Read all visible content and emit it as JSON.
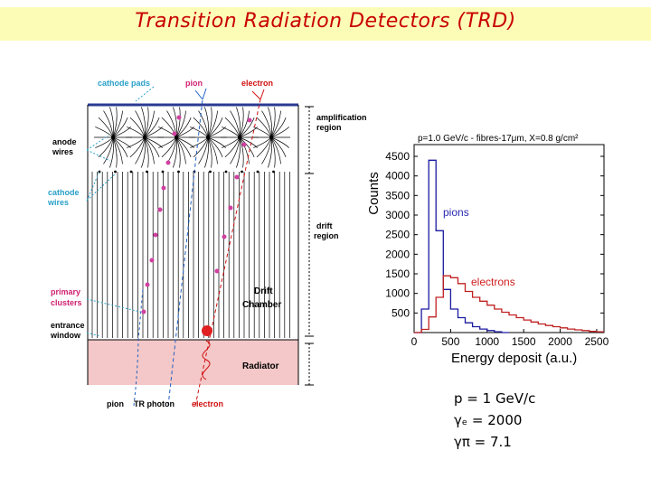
{
  "title": "Transition Radiation Detectors (TRD)",
  "diagram": {
    "labels": {
      "cathode_pads": "cathode pads",
      "pion_top": "pion",
      "electron_top": "electron",
      "amplification": [
        "amplification",
        "region"
      ],
      "anode_wires": [
        "anode",
        "wires"
      ],
      "cathode_wires": [
        "cathode",
        "wires"
      ],
      "drift_region": [
        "drift",
        "region"
      ],
      "drift_chamber": [
        "Drift",
        "Chamber"
      ],
      "primary_clusters": [
        "primary",
        "clusters"
      ],
      "entrance_window": [
        "entrance",
        "window"
      ],
      "radiator": "Radiator",
      "pion_bottom": "pion",
      "tr_photon": "TR photon",
      "electron_bottom": "electron"
    },
    "colors": {
      "cathode_label": "#2aa0c8",
      "pion": "#d02070",
      "electron": "#d01010",
      "radiator_fill": "#f4c8c8"
    }
  },
  "chart_data": {
    "type": "histogram",
    "header": "p=1.0 GeV/c - fibres-17μm, X=0.8 g/cm²",
    "xlabel": "Energy deposit (a.u.)",
    "ylabel": "Counts",
    "xlim": [
      0,
      2600
    ],
    "ylim": [
      0,
      4800
    ],
    "xticks": [
      0,
      500,
      1000,
      1500,
      2000,
      2500
    ],
    "yticks": [
      500,
      1000,
      1500,
      2000,
      2500,
      3000,
      3500,
      4000,
      4500
    ],
    "series": [
      {
        "name": "pions",
        "color": "#1a1aa0",
        "label_color": "#2a2ab0",
        "x": [
          0,
          100,
          200,
          300,
          400,
          500,
          600,
          700,
          800,
          900,
          1000,
          1100,
          1200
        ],
        "values": [
          0,
          600,
          4400,
          2600,
          1100,
          600,
          380,
          250,
          150,
          90,
          50,
          20,
          0
        ]
      },
      {
        "name": "electrons",
        "color": "#c02020",
        "label_color": "#d02020",
        "x": [
          0,
          100,
          200,
          300,
          400,
          500,
          600,
          700,
          800,
          900,
          1000,
          1100,
          1200,
          1300,
          1400,
          1500,
          1600,
          1700,
          1800,
          1900,
          2000,
          2100,
          2200,
          2300,
          2400,
          2500
        ],
        "values": [
          0,
          80,
          400,
          900,
          1450,
          1400,
          1250,
          1050,
          900,
          800,
          700,
          600,
          520,
          450,
          380,
          320,
          270,
          220,
          180,
          150,
          120,
          90,
          70,
          50,
          30,
          20
        ]
      }
    ]
  },
  "parameters": [
    "p = 1 GeV/c",
    "γₑ = 2000",
    "γπ = 7.1"
  ]
}
